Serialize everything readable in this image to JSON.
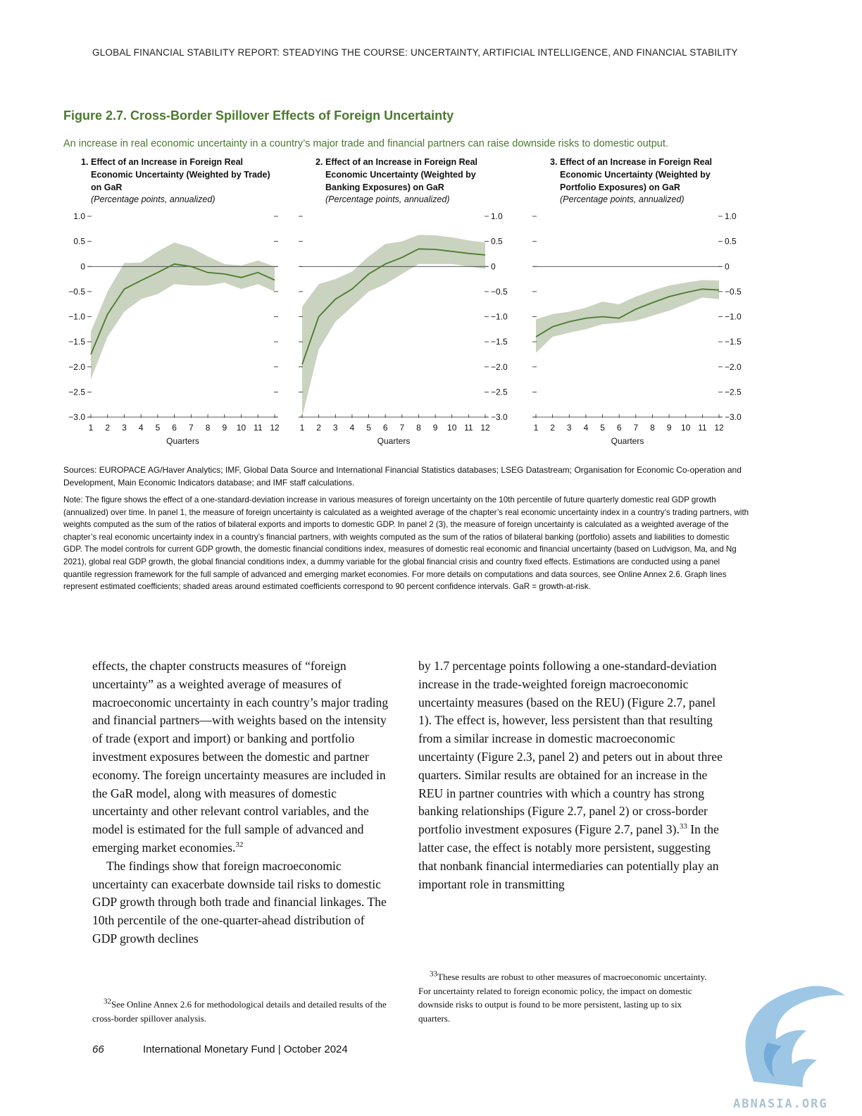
{
  "running_head": "GLOBAL FINANCIAL STABILITY REPORT: STEADYING THE COURSE: UNCERTAINTY, ARTIFICIAL INTELLIGENCE, AND FINANCIAL STABILITY",
  "figure": {
    "title": "Figure 2.7. Cross-Border Spillover Effects of Foreign Uncertainty",
    "subtitle": "An increase in real economic uncertainty in a country’s major trade and financial partners can raise downside risks to domestic output.",
    "panels": [
      {
        "num": "1.",
        "title_lines": [
          "Effect of an Increase in Foreign Real",
          "Economic Uncertainty (Weighted by Trade)",
          "on GaR"
        ],
        "unit": "(Percentage points, annualized)"
      },
      {
        "num": "2.",
        "title_lines": [
          "Effect of an Increase in Foreign Real",
          "Economic Uncertainty (Weighted by",
          "Banking Exposures) on GaR"
        ],
        "unit": "(Percentage points, annualized)"
      },
      {
        "num": "3.",
        "title_lines": [
          "Effect of an Increase in Foreign Real",
          "Economic Uncertainty (Weighted by",
          "Portfolio Exposures) on GaR"
        ],
        "unit": "(Percentage points, annualized)"
      }
    ],
    "sources": "Sources: EUROPACE AG/Haver Analytics; IMF, Global Data Source and International Financial Statistics databases; LSEG Datastream; Organisation for Economic Co-operation and Development, Main Economic Indicators database; and IMF staff calculations.",
    "note": "Note: The figure shows the effect of a one-standard-deviation increase in various measures of foreign uncertainty on the 10th percentile of future quarterly domestic real GDP growth (annualized) over time. In panel 1, the measure of foreign uncertainty is calculated as a weighted average of the chapter’s real economic uncertainty index in a country’s trading partners, with weights computed as the sum of the ratios of bilateral exports and imports to domestic GDP. In panel 2 (3), the measure of foreign uncertainty is calculated as a weighted average of the chapter’s real economic uncertainty index in a country’s financial partners, with weights computed as the sum of the ratios of bilateral banking (portfolio) assets and liabilities to domestic GDP. The model controls for current GDP growth, the domestic financial conditions index, measures of domestic real economic and financial uncertainty (based on Ludvigson, Ma, and Ng 2021), global real GDP growth, the global financial conditions index, a dummy variable for the global financial crisis and country fixed effects. Estimations are conducted using a panel quantile regression framework for the full sample of advanced and emerging market economies. For more details on computations and data sources, see Online Annex 2.6. Graph lines represent estimated coefficients; shaded areas around estimated coefficients correspond to 90 percent confidence intervals. GaR = growth-at-risk."
  },
  "chart_data": [
    {
      "type": "line",
      "x": [
        1,
        2,
        3,
        4,
        5,
        6,
        7,
        8,
        9,
        10,
        11,
        12
      ],
      "series": [
        {
          "values": [
            -1.75,
            -0.95,
            -0.45,
            -0.28,
            -0.12,
            0.05,
            0.0,
            -0.12,
            -0.15,
            -0.22,
            -0.12,
            -0.27
          ]
        },
        {
          "values": [
            -2.25,
            -1.4,
            -0.9,
            -0.65,
            -0.55,
            -0.35,
            -0.38,
            -0.38,
            -0.32,
            -0.45,
            -0.35,
            -0.5
          ]
        },
        {
          "values": [
            -1.3,
            -0.5,
            0.07,
            0.08,
            0.3,
            0.48,
            0.38,
            0.2,
            0.05,
            0.02,
            0.12,
            0.0
          ]
        }
      ],
      "xlabel": "Quarters",
      "ylabel": "",
      "ylim": [
        -3.0,
        1.0
      ],
      "yticks": [
        "1.0",
        "0.5",
        "0",
        "−0.5",
        "−1.0",
        "−1.5",
        "−2.0",
        "−2.5",
        "−3.0"
      ],
      "xtick_labels": [
        "1",
        "2",
        "3",
        "4",
        "5",
        "6",
        "7",
        "8",
        "9",
        "10",
        "11",
        "12"
      ],
      "line_color": "#4a7a2e",
      "band_color": "#c9d3bf"
    },
    {
      "type": "line",
      "x": [
        1,
        2,
        3,
        4,
        5,
        6,
        7,
        8,
        9,
        10,
        11,
        12
      ],
      "series": [
        {
          "values": [
            -1.95,
            -1.0,
            -0.65,
            -0.45,
            -0.15,
            0.05,
            0.18,
            0.35,
            0.34,
            0.3,
            0.26,
            0.23
          ]
        },
        {
          "values": [
            -3.0,
            -1.65,
            -1.1,
            -0.8,
            -0.5,
            -0.35,
            -0.15,
            0.05,
            0.05,
            0.05,
            0.0,
            -0.05
          ]
        },
        {
          "values": [
            -0.8,
            -0.35,
            -0.25,
            -0.1,
            0.2,
            0.45,
            0.5,
            0.63,
            0.62,
            0.58,
            0.52,
            0.48
          ]
        }
      ],
      "xlabel": "Quarters",
      "ylabel": "",
      "ylim": [
        -3.0,
        1.0
      ],
      "yticks": [
        "1.0",
        "0.5",
        "0",
        "−0.5",
        "−1.0",
        "−1.5",
        "−2.0",
        "−2.5",
        "−3.0"
      ],
      "xtick_labels": [
        "1",
        "2",
        "3",
        "4",
        "5",
        "6",
        "7",
        "8",
        "9",
        "10",
        "11",
        "12"
      ],
      "line_color": "#4a7a2e",
      "band_color": "#c9d3bf"
    },
    {
      "type": "line",
      "x": [
        1,
        2,
        3,
        4,
        5,
        6,
        7,
        8,
        9,
        10,
        11,
        12
      ],
      "series": [
        {
          "values": [
            -1.4,
            -1.2,
            -1.1,
            -1.03,
            -1.0,
            -1.03,
            -0.85,
            -0.72,
            -0.6,
            -0.52,
            -0.45,
            -0.47
          ]
        },
        {
          "values": [
            -1.72,
            -1.4,
            -1.32,
            -1.25,
            -1.15,
            -1.12,
            -1.08,
            -0.98,
            -0.88,
            -0.75,
            -0.62,
            -0.65
          ]
        },
        {
          "values": [
            -1.05,
            -0.95,
            -0.9,
            -0.82,
            -0.7,
            -0.75,
            -0.6,
            -0.48,
            -0.38,
            -0.32,
            -0.27,
            -0.28
          ]
        }
      ],
      "xlabel": "Quarters",
      "ylabel": "",
      "ylim": [
        -3.0,
        1.0
      ],
      "yticks": [
        "1.0",
        "0.5",
        "0",
        "−0.5",
        "−1.0",
        "−1.5",
        "−2.0",
        "−2.5",
        "−3.0"
      ],
      "xtick_labels": [
        "1",
        "2",
        "3",
        "4",
        "5",
        "6",
        "7",
        "8",
        "9",
        "10",
        "11",
        "12"
      ],
      "line_color": "#4a7a2e",
      "band_color": "#c9d3bf"
    }
  ],
  "body": {
    "col1_p1": "effects, the chapter constructs measures of “foreign uncertainty” as a weighted average of measures of macroeconomic uncertainty in each country’s major trading and financial partners—with weights based on the intensity of trade (export and import) or banking and portfolio investment exposures between the domestic and partner economy. The foreign uncertainty measures are included in the GaR model, along with measures of domestic uncertainty and other relevant control variables, and the model is estimated for the full sample of advanced and emerging market economies.",
    "col1_p1_fn": "32",
    "col1_p2": "The findings show that foreign macroeconomic uncertainty can exacerbate downside tail risks to domestic GDP growth through both trade and financial linkages. The 10th percentile of the one-quarter-ahead distribution of GDP growth declines",
    "col2_p1a": "by 1.7 percentage points following a one-standard-deviation increase in the trade-weighted foreign macroeconomic uncertainty measures (based on the REU) (Figure 2.7, panel 1). The effect is, however, less persistent than that resulting from a similar increase in domestic macroeconomic uncertainty (Figure 2.3, panel 2) and peters out in about three quarters. Similar results are obtained for an increase in the REU in partner countries with which a country has strong banking relationships (Figure 2.7, panel 2) or cross-border portfolio investment exposures (Figure 2.7, panel 3).",
    "col2_p1_fn": "33",
    "col2_p1b": " In the latter case, the effect is notably more persistent, suggesting that nonbank financial intermediaries can potentially play an important role in transmitting"
  },
  "footnotes": {
    "fn32_num": "32",
    "fn32": "See Online Annex 2.6 for methodological details and detailed results of the cross-border spillover analysis.",
    "fn33_num": "33",
    "fn33": "These results are robust to other measures of macroeconomic uncertainty. For uncertainty related to foreign economic policy, the impact on domestic downside risks to output is found to be more persistent, lasting up to six quarters."
  },
  "footer": {
    "page_number": "66",
    "text": "International Monetary Fund | October 2024"
  },
  "watermark": {
    "text": "ABNASIA.ORG",
    "color": "#8cbde0"
  }
}
